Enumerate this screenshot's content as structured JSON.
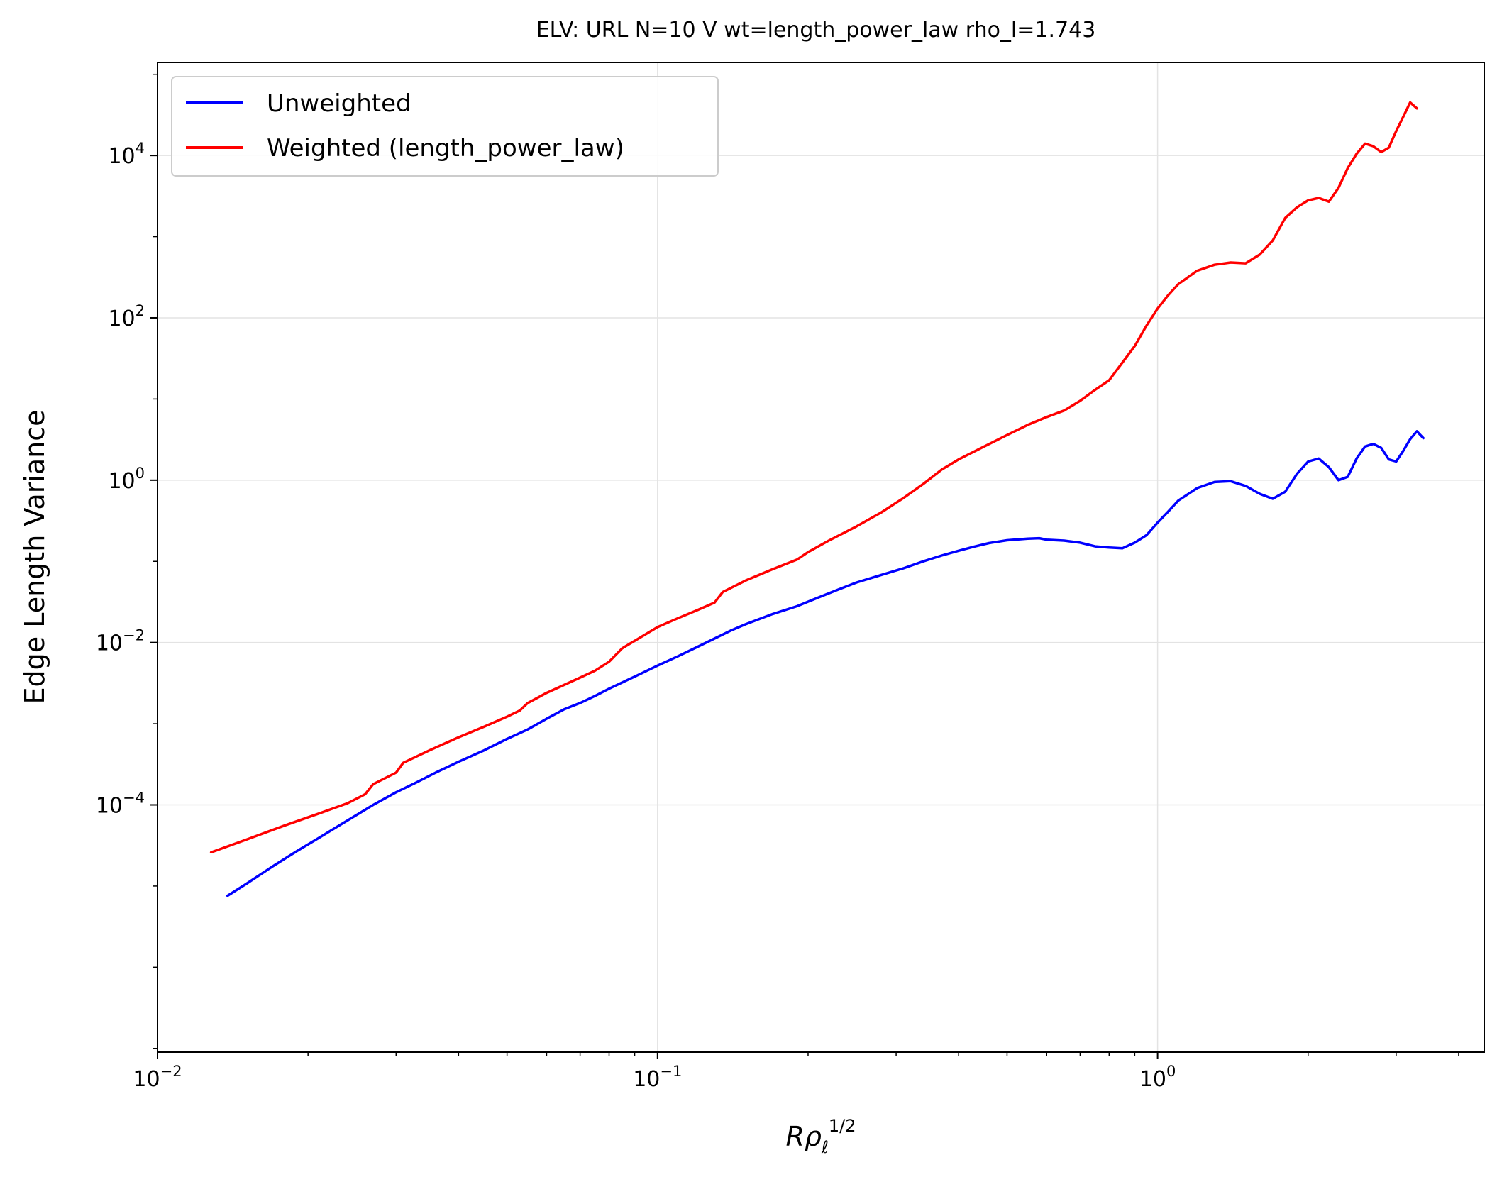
{
  "chart_data": {
    "type": "line",
    "title": "ELV: URL N=10 V wt=length_power_law rho_l=1.743",
    "xlabel_base": "Rρ",
    "xlabel_sub": "ℓ",
    "xlabel_sup": "1/2",
    "ylabel": "Edge Length Variance",
    "xscale": "log",
    "yscale": "log",
    "xlim": [
      0.01,
      4.5
    ],
    "ylim": [
      9e-08,
      140000
    ],
    "grid": true,
    "legend_position": "top-left",
    "x_ticks": [
      {
        "value": 0.01,
        "base": "10",
        "exp": "−2"
      },
      {
        "value": 0.1,
        "base": "10",
        "exp": "−1"
      },
      {
        "value": 1,
        "base": "10",
        "exp": "0"
      }
    ],
    "y_ticks": [
      {
        "value": 0.0001,
        "base": "10",
        "exp": "−4"
      },
      {
        "value": 0.01,
        "base": "10",
        "exp": "−2"
      },
      {
        "value": 1,
        "base": "10",
        "exp": "0"
      },
      {
        "value": 100,
        "base": "10",
        "exp": "2"
      },
      {
        "value": 10000,
        "base": "10",
        "exp": "4"
      }
    ],
    "series": [
      {
        "name": "Unweighted",
        "color": "#0000ff",
        "points": [
          [
            0.0138,
            7.6e-06
          ],
          [
            0.015,
            1.05e-05
          ],
          [
            0.017,
            1.75e-05
          ],
          [
            0.019,
            2.7e-05
          ],
          [
            0.021,
            3.9e-05
          ],
          [
            0.023,
            5.5e-05
          ],
          [
            0.025,
            7.5e-05
          ],
          [
            0.027,
            0.0001
          ],
          [
            0.03,
            0.000143
          ],
          [
            0.033,
            0.00019
          ],
          [
            0.036,
            0.00025
          ],
          [
            0.04,
            0.00034
          ],
          [
            0.045,
            0.00047
          ],
          [
            0.05,
            0.00065
          ],
          [
            0.055,
            0.00085
          ],
          [
            0.06,
            0.00115
          ],
          [
            0.065,
            0.0015
          ],
          [
            0.07,
            0.0018
          ],
          [
            0.075,
            0.0022
          ],
          [
            0.08,
            0.0027
          ],
          [
            0.09,
            0.0038
          ],
          [
            0.1,
            0.0052
          ],
          [
            0.11,
            0.0068
          ],
          [
            0.12,
            0.0088
          ],
          [
            0.13,
            0.0112
          ],
          [
            0.14,
            0.014
          ],
          [
            0.15,
            0.0168
          ],
          [
            0.17,
            0.0225
          ],
          [
            0.19,
            0.028
          ],
          [
            0.21,
            0.036
          ],
          [
            0.23,
            0.045
          ],
          [
            0.25,
            0.055
          ],
          [
            0.28,
            0.068
          ],
          [
            0.31,
            0.082
          ],
          [
            0.34,
            0.1
          ],
          [
            0.37,
            0.118
          ],
          [
            0.4,
            0.135
          ],
          [
            0.43,
            0.152
          ],
          [
            0.46,
            0.168
          ],
          [
            0.5,
            0.182
          ],
          [
            0.55,
            0.19
          ],
          [
            0.58,
            0.193
          ],
          [
            0.6,
            0.185
          ],
          [
            0.65,
            0.18
          ],
          [
            0.7,
            0.17
          ],
          [
            0.75,
            0.153
          ],
          [
            0.8,
            0.148
          ],
          [
            0.85,
            0.145
          ],
          [
            0.9,
            0.17
          ],
          [
            0.95,
            0.21
          ],
          [
            1.0,
            0.3
          ],
          [
            1.05,
            0.41
          ],
          [
            1.1,
            0.56
          ],
          [
            1.2,
            0.8
          ],
          [
            1.3,
            0.95
          ],
          [
            1.4,
            0.97
          ],
          [
            1.5,
            0.85
          ],
          [
            1.6,
            0.68
          ],
          [
            1.7,
            0.59
          ],
          [
            1.8,
            0.72
          ],
          [
            1.9,
            1.2
          ],
          [
            2.0,
            1.7
          ],
          [
            2.1,
            1.85
          ],
          [
            2.2,
            1.45
          ],
          [
            2.3,
            1.0
          ],
          [
            2.4,
            1.1
          ],
          [
            2.5,
            1.85
          ],
          [
            2.6,
            2.6
          ],
          [
            2.7,
            2.8
          ],
          [
            2.8,
            2.5
          ],
          [
            2.9,
            1.8
          ],
          [
            3.0,
            1.7
          ],
          [
            3.1,
            2.3
          ],
          [
            3.2,
            3.2
          ],
          [
            3.3,
            4.0
          ],
          [
            3.4,
            3.3
          ]
        ]
      },
      {
        "name": "Weighted (length_power_law)",
        "color": "#ff0000",
        "points": [
          [
            0.0128,
            2.6e-05
          ],
          [
            0.015,
            3.7e-05
          ],
          [
            0.018,
            5.6e-05
          ],
          [
            0.021,
            7.8e-05
          ],
          [
            0.024,
            0.000105
          ],
          [
            0.026,
            0.000135
          ],
          [
            0.027,
            0.00018
          ],
          [
            0.03,
            0.00025
          ],
          [
            0.031,
            0.00033
          ],
          [
            0.035,
            0.00047
          ],
          [
            0.04,
            0.00068
          ],
          [
            0.045,
            0.00092
          ],
          [
            0.05,
            0.00122
          ],
          [
            0.053,
            0.00145
          ],
          [
            0.055,
            0.0018
          ],
          [
            0.06,
            0.0024
          ],
          [
            0.065,
            0.003
          ],
          [
            0.07,
            0.0037
          ],
          [
            0.075,
            0.0045
          ],
          [
            0.08,
            0.0058
          ],
          [
            0.085,
            0.0085
          ],
          [
            0.09,
            0.0105
          ],
          [
            0.1,
            0.0155
          ],
          [
            0.11,
            0.02
          ],
          [
            0.12,
            0.025
          ],
          [
            0.13,
            0.031
          ],
          [
            0.135,
            0.042
          ],
          [
            0.15,
            0.058
          ],
          [
            0.17,
            0.08
          ],
          [
            0.19,
            0.105
          ],
          [
            0.2,
            0.13
          ],
          [
            0.22,
            0.18
          ],
          [
            0.25,
            0.27
          ],
          [
            0.28,
            0.4
          ],
          [
            0.31,
            0.6
          ],
          [
            0.34,
            0.9
          ],
          [
            0.37,
            1.35
          ],
          [
            0.4,
            1.8
          ],
          [
            0.45,
            2.6
          ],
          [
            0.5,
            3.6
          ],
          [
            0.55,
            4.8
          ],
          [
            0.6,
            6.0
          ],
          [
            0.65,
            7.2
          ],
          [
            0.7,
            9.5
          ],
          [
            0.75,
            13
          ],
          [
            0.8,
            17
          ],
          [
            0.85,
            28
          ],
          [
            0.9,
            45
          ],
          [
            0.95,
            80
          ],
          [
            1.0,
            130
          ],
          [
            1.05,
            190
          ],
          [
            1.1,
            260
          ],
          [
            1.2,
            380
          ],
          [
            1.3,
            450
          ],
          [
            1.4,
            480
          ],
          [
            1.5,
            470
          ],
          [
            1.6,
            600
          ],
          [
            1.7,
            900
          ],
          [
            1.8,
            1700
          ],
          [
            1.9,
            2300
          ],
          [
            2.0,
            2800
          ],
          [
            2.1,
            3000
          ],
          [
            2.2,
            2700
          ],
          [
            2.3,
            4000
          ],
          [
            2.4,
            7000
          ],
          [
            2.5,
            10500
          ],
          [
            2.6,
            14000
          ],
          [
            2.7,
            13000
          ],
          [
            2.8,
            11000
          ],
          [
            2.9,
            12500
          ],
          [
            3.0,
            20000
          ],
          [
            3.1,
            30000
          ],
          [
            3.2,
            45000
          ],
          [
            3.3,
            38000
          ]
        ]
      }
    ]
  }
}
